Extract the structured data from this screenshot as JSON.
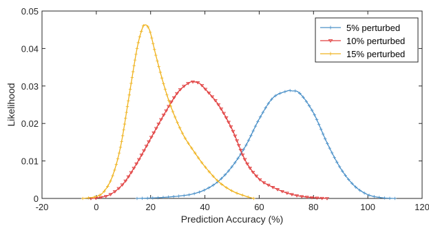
{
  "chart_data": {
    "type": "line",
    "title": "",
    "xlabel": "Prediction Accuracy (%)",
    "ylabel": "Likelihood",
    "xlim": [
      -20,
      120
    ],
    "ylim": [
      0,
      0.05
    ],
    "x_ticks": [
      -20,
      0,
      20,
      40,
      60,
      80,
      100,
      120
    ],
    "x_tick_labels": [
      "-20",
      "0",
      "20",
      "40",
      "60",
      "80",
      "100",
      "120"
    ],
    "y_ticks": [
      0,
      0.01,
      0.02,
      0.03,
      0.04,
      0.05
    ],
    "y_tick_labels": [
      "0",
      "0.01",
      "0.02",
      "0.03",
      "0.04",
      "0.05"
    ],
    "grid": false,
    "legend_position": "top-right",
    "series": [
      {
        "name": "5% perturbed",
        "color": "#4a90c8",
        "marker": "plus",
        "x": [
          15,
          20,
          25,
          30,
          35,
          40,
          45,
          50,
          55,
          60,
          65,
          70,
          72,
          75,
          80,
          85,
          90,
          95,
          100,
          105,
          110
        ],
        "y": [
          0,
          0.0001,
          0.0003,
          0.0006,
          0.0011,
          0.0023,
          0.0046,
          0.0085,
          0.014,
          0.0212,
          0.0268,
          0.0286,
          0.0287,
          0.028,
          0.0228,
          0.0148,
          0.008,
          0.0034,
          0.001,
          0.0002,
          0
        ]
      },
      {
        "name": "10% perturbed",
        "color": "#e03c3c",
        "marker": "triangle-down",
        "x": [
          -2,
          0,
          5,
          10,
          15,
          20,
          25,
          30,
          34,
          36,
          38,
          40,
          45,
          50,
          55,
          60,
          65,
          70,
          75,
          80,
          85
        ],
        "y": [
          0,
          0.0001,
          0.001,
          0.004,
          0.0095,
          0.016,
          0.0225,
          0.0283,
          0.0308,
          0.0311,
          0.0307,
          0.0293,
          0.025,
          0.0185,
          0.01,
          0.0052,
          0.003,
          0.0015,
          0.0006,
          0.0002,
          0
        ]
      },
      {
        "name": "15% perturbed",
        "color": "#efb21c",
        "marker": "plus",
        "x": [
          -5,
          0,
          3,
          6,
          9,
          12,
          15,
          17,
          18,
          19,
          20,
          22,
          25,
          28,
          32,
          36,
          40,
          45,
          50,
          55,
          58
        ],
        "y": [
          0,
          0.0005,
          0.002,
          0.006,
          0.014,
          0.027,
          0.04,
          0.0455,
          0.0463,
          0.0458,
          0.044,
          0.038,
          0.03,
          0.0235,
          0.017,
          0.0125,
          0.0085,
          0.0045,
          0.002,
          0.0006,
          0
        ]
      }
    ]
  }
}
